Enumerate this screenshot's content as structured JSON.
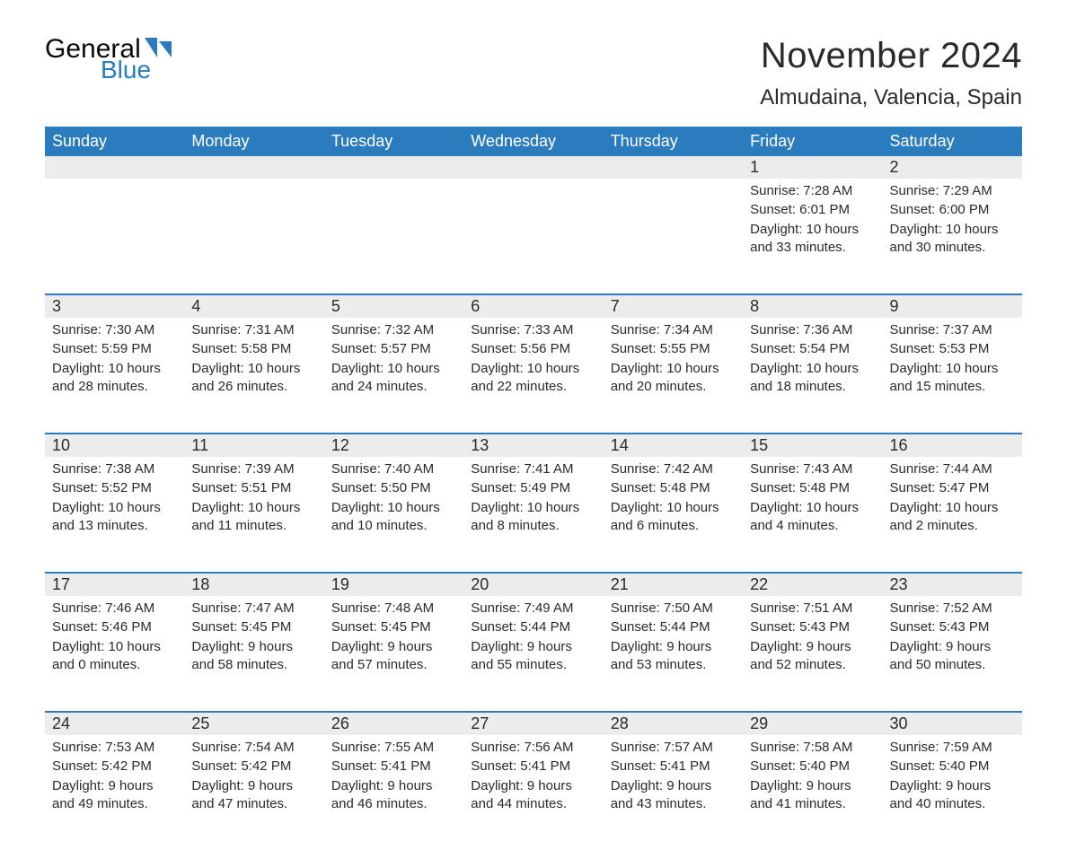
{
  "logo": {
    "general": "General",
    "blue": "Blue",
    "flag_color": "#2b7bbf"
  },
  "title": "November 2024",
  "location": "Almudaina, Valencia, Spain",
  "colors": {
    "header_bg": "#2b7bbf",
    "header_text": "#ffffff",
    "daynum_bg": "#ececec",
    "rule": "#2b7bbf",
    "text": "#2a2a2a",
    "background": "#ffffff"
  },
  "fonts": {
    "title_size_pt": 40,
    "location_size_pt": 24,
    "dayhead_size_pt": 18,
    "cell_size_pt": 15,
    "family": "Arial"
  },
  "day_headers": [
    "Sunday",
    "Monday",
    "Tuesday",
    "Wednesday",
    "Thursday",
    "Friday",
    "Saturday"
  ],
  "weeks": [
    [
      {
        "n": "",
        "sunrise": "",
        "sunset": "",
        "daylight": ""
      },
      {
        "n": "",
        "sunrise": "",
        "sunset": "",
        "daylight": ""
      },
      {
        "n": "",
        "sunrise": "",
        "sunset": "",
        "daylight": ""
      },
      {
        "n": "",
        "sunrise": "",
        "sunset": "",
        "daylight": ""
      },
      {
        "n": "",
        "sunrise": "",
        "sunset": "",
        "daylight": ""
      },
      {
        "n": "1",
        "sunrise": "Sunrise: 7:28 AM",
        "sunset": "Sunset: 6:01 PM",
        "daylight": "Daylight: 10 hours and 33 minutes."
      },
      {
        "n": "2",
        "sunrise": "Sunrise: 7:29 AM",
        "sunset": "Sunset: 6:00 PM",
        "daylight": "Daylight: 10 hours and 30 minutes."
      }
    ],
    [
      {
        "n": "3",
        "sunrise": "Sunrise: 7:30 AM",
        "sunset": "Sunset: 5:59 PM",
        "daylight": "Daylight: 10 hours and 28 minutes."
      },
      {
        "n": "4",
        "sunrise": "Sunrise: 7:31 AM",
        "sunset": "Sunset: 5:58 PM",
        "daylight": "Daylight: 10 hours and 26 minutes."
      },
      {
        "n": "5",
        "sunrise": "Sunrise: 7:32 AM",
        "sunset": "Sunset: 5:57 PM",
        "daylight": "Daylight: 10 hours and 24 minutes."
      },
      {
        "n": "6",
        "sunrise": "Sunrise: 7:33 AM",
        "sunset": "Sunset: 5:56 PM",
        "daylight": "Daylight: 10 hours and 22 minutes."
      },
      {
        "n": "7",
        "sunrise": "Sunrise: 7:34 AM",
        "sunset": "Sunset: 5:55 PM",
        "daylight": "Daylight: 10 hours and 20 minutes."
      },
      {
        "n": "8",
        "sunrise": "Sunrise: 7:36 AM",
        "sunset": "Sunset: 5:54 PM",
        "daylight": "Daylight: 10 hours and 18 minutes."
      },
      {
        "n": "9",
        "sunrise": "Sunrise: 7:37 AM",
        "sunset": "Sunset: 5:53 PM",
        "daylight": "Daylight: 10 hours and 15 minutes."
      }
    ],
    [
      {
        "n": "10",
        "sunrise": "Sunrise: 7:38 AM",
        "sunset": "Sunset: 5:52 PM",
        "daylight": "Daylight: 10 hours and 13 minutes."
      },
      {
        "n": "11",
        "sunrise": "Sunrise: 7:39 AM",
        "sunset": "Sunset: 5:51 PM",
        "daylight": "Daylight: 10 hours and 11 minutes."
      },
      {
        "n": "12",
        "sunrise": "Sunrise: 7:40 AM",
        "sunset": "Sunset: 5:50 PM",
        "daylight": "Daylight: 10 hours and 10 minutes."
      },
      {
        "n": "13",
        "sunrise": "Sunrise: 7:41 AM",
        "sunset": "Sunset: 5:49 PM",
        "daylight": "Daylight: 10 hours and 8 minutes."
      },
      {
        "n": "14",
        "sunrise": "Sunrise: 7:42 AM",
        "sunset": "Sunset: 5:48 PM",
        "daylight": "Daylight: 10 hours and 6 minutes."
      },
      {
        "n": "15",
        "sunrise": "Sunrise: 7:43 AM",
        "sunset": "Sunset: 5:48 PM",
        "daylight": "Daylight: 10 hours and 4 minutes."
      },
      {
        "n": "16",
        "sunrise": "Sunrise: 7:44 AM",
        "sunset": "Sunset: 5:47 PM",
        "daylight": "Daylight: 10 hours and 2 minutes."
      }
    ],
    [
      {
        "n": "17",
        "sunrise": "Sunrise: 7:46 AM",
        "sunset": "Sunset: 5:46 PM",
        "daylight": "Daylight: 10 hours and 0 minutes."
      },
      {
        "n": "18",
        "sunrise": "Sunrise: 7:47 AM",
        "sunset": "Sunset: 5:45 PM",
        "daylight": "Daylight: 9 hours and 58 minutes."
      },
      {
        "n": "19",
        "sunrise": "Sunrise: 7:48 AM",
        "sunset": "Sunset: 5:45 PM",
        "daylight": "Daylight: 9 hours and 57 minutes."
      },
      {
        "n": "20",
        "sunrise": "Sunrise: 7:49 AM",
        "sunset": "Sunset: 5:44 PM",
        "daylight": "Daylight: 9 hours and 55 minutes."
      },
      {
        "n": "21",
        "sunrise": "Sunrise: 7:50 AM",
        "sunset": "Sunset: 5:44 PM",
        "daylight": "Daylight: 9 hours and 53 minutes."
      },
      {
        "n": "22",
        "sunrise": "Sunrise: 7:51 AM",
        "sunset": "Sunset: 5:43 PM",
        "daylight": "Daylight: 9 hours and 52 minutes."
      },
      {
        "n": "23",
        "sunrise": "Sunrise: 7:52 AM",
        "sunset": "Sunset: 5:43 PM",
        "daylight": "Daylight: 9 hours and 50 minutes."
      }
    ],
    [
      {
        "n": "24",
        "sunrise": "Sunrise: 7:53 AM",
        "sunset": "Sunset: 5:42 PM",
        "daylight": "Daylight: 9 hours and 49 minutes."
      },
      {
        "n": "25",
        "sunrise": "Sunrise: 7:54 AM",
        "sunset": "Sunset: 5:42 PM",
        "daylight": "Daylight: 9 hours and 47 minutes."
      },
      {
        "n": "26",
        "sunrise": "Sunrise: 7:55 AM",
        "sunset": "Sunset: 5:41 PM",
        "daylight": "Daylight: 9 hours and 46 minutes."
      },
      {
        "n": "27",
        "sunrise": "Sunrise: 7:56 AM",
        "sunset": "Sunset: 5:41 PM",
        "daylight": "Daylight: 9 hours and 44 minutes."
      },
      {
        "n": "28",
        "sunrise": "Sunrise: 7:57 AM",
        "sunset": "Sunset: 5:41 PM",
        "daylight": "Daylight: 9 hours and 43 minutes."
      },
      {
        "n": "29",
        "sunrise": "Sunrise: 7:58 AM",
        "sunset": "Sunset: 5:40 PM",
        "daylight": "Daylight: 9 hours and 41 minutes."
      },
      {
        "n": "30",
        "sunrise": "Sunrise: 7:59 AM",
        "sunset": "Sunset: 5:40 PM",
        "daylight": "Daylight: 9 hours and 40 minutes."
      }
    ]
  ]
}
